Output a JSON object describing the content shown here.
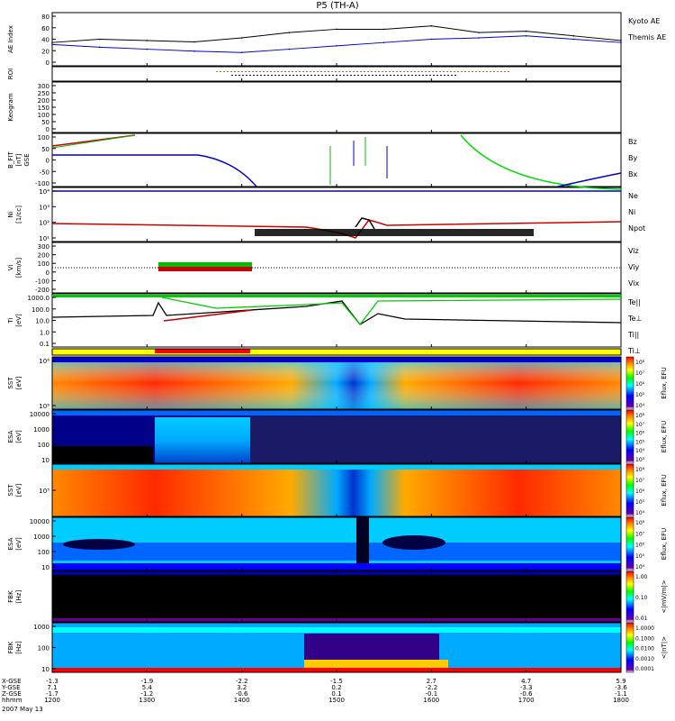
{
  "title": "P5 (TH-A)",
  "panels": [
    {
      "ylabel": "AE Index",
      "ticks": [
        "80",
        "60",
        "40",
        "20",
        "0"
      ],
      "legend": [
        {
          "text": "Kyoto AE",
          "color": "#0000cc"
        },
        {
          "text": "Themis AE",
          "color": "#000000"
        }
      ]
    },
    {
      "ylabel": "ROI",
      "ticks": [],
      "legend": []
    },
    {
      "ylabel": "Keogram",
      "ticks": [
        "300",
        "250",
        "200",
        "150",
        "100",
        "50",
        "0"
      ],
      "legend": []
    },
    {
      "ylabel": "B_FIT\n[nT]\nGSE",
      "ticks": [
        "100",
        "50",
        "0",
        "-50",
        "-100"
      ],
      "legend": [
        {
          "text": "Bz",
          "color": "#cc0000"
        },
        {
          "text": "By",
          "color": "#00bb00"
        },
        {
          "text": "Bx",
          "color": "#0000cc"
        }
      ]
    },
    {
      "ylabel": "Ni\n[1/cc]",
      "ticks": [
        "10⁴",
        "10³",
        "10²",
        "10¹"
      ],
      "legend": [
        {
          "text": "Ne",
          "color": "#cc0000"
        },
        {
          "text": "Ni",
          "color": "#000000"
        },
        {
          "text": "Npot",
          "color": "#0000cc"
        }
      ]
    },
    {
      "ylabel": "Vi\n[km/s]",
      "ticks": [
        "300",
        "200",
        "100",
        "0",
        "-100",
        "-200"
      ],
      "legend": [
        {
          "text": "Viz",
          "color": "#cc0000"
        },
        {
          "text": "Viy",
          "color": "#00bb00"
        },
        {
          "text": "Vix",
          "color": "#0000cc"
        }
      ]
    },
    {
      "ylabel": "Ti\n[eV]",
      "ticks": [
        "1000.0",
        "100.0",
        "10.0",
        "1.0",
        "0.1"
      ],
      "legend": [
        {
          "text": "Te||",
          "color": "#000000"
        },
        {
          "text": "Te⊥",
          "color": "#cc0000"
        },
        {
          "text": "Ti||",
          "color": "#00bb00"
        },
        {
          "text": "Ti⊥",
          "color": "#0000cc"
        }
      ]
    },
    {
      "ylabel": "SST\n[eV]",
      "ticks": [
        "10⁶",
        "10⁵"
      ],
      "legend": []
    },
    {
      "ylabel": "ESA\n[eV]",
      "ticks": [
        "10000",
        "1000",
        "100",
        "10"
      ],
      "legend": []
    },
    {
      "ylabel": "SST\n[eV]",
      "ticks": [
        "10⁵"
      ],
      "legend": []
    },
    {
      "ylabel": "ESA\n[eV]",
      "ticks": [
        "10000",
        "1000",
        "100",
        "10"
      ],
      "legend": []
    },
    {
      "ylabel": "FBK\n[Hz]",
      "ticks": [],
      "legend": []
    },
    {
      "ylabel": "FBK\n[Hz]",
      "ticks": [
        "1000",
        "100",
        "10"
      ],
      "legend": []
    }
  ],
  "colorbars": [
    {
      "label": "Eflux, EFU",
      "ticks": [
        "10⁸",
        "10⁷",
        "10⁶",
        "10⁵",
        "10⁴"
      ]
    },
    {
      "label": "Eflux, EFU",
      "ticks": [
        "10⁸",
        "10⁷",
        "10⁶",
        "10⁵",
        "10⁴",
        "10³"
      ]
    },
    {
      "label": "Eflux, EFU",
      "ticks": [
        "10⁸",
        "10⁷",
        "10⁶",
        "10⁵",
        "10⁴"
      ]
    },
    {
      "label": "Eflux, EFU",
      "ticks": [
        "10⁸",
        "10⁷",
        "10⁶",
        "10⁵",
        "10⁴"
      ]
    },
    {
      "label": "<|mV/m|>",
      "ticks": [
        "1.00",
        "0.10",
        "0.01"
      ]
    },
    {
      "label": "<|nT|>",
      "ticks": [
        "1.0000",
        "0.1000",
        "0.0100",
        "0.0010",
        "0.0001"
      ]
    }
  ],
  "xaxis": {
    "rows": [
      {
        "label": "X-GSE",
        "values": [
          "-1.3",
          "-1.9",
          "-2.2",
          "-1.5",
          "2.7",
          "4.7",
          "5.9"
        ]
      },
      {
        "label": "Y-GSE",
        "values": [
          "7.1",
          "5.4",
          "3.2",
          "0.2",
          "-2.2",
          "-3.3",
          "-3.6"
        ]
      },
      {
        "label": "Z-GSE",
        "values": [
          "-1.7",
          "-1.2",
          "-0.6",
          "0.1",
          "-0.1",
          "-0.6",
          "-1.1"
        ]
      },
      {
        "label": "hhmm",
        "values": [
          "1200",
          "1300",
          "1400",
          "1500",
          "1600",
          "1700",
          "1800"
        ]
      }
    ],
    "date": "2007 May 13"
  },
  "chart_data": {
    "type": "line",
    "title": "P5 (TH-A)",
    "x_unit": "hhmm",
    "xlim": [
      "1200",
      "1800"
    ],
    "series": [
      {
        "name": "Kyoto AE",
        "x": [
          "1200",
          "1230",
          "1300",
          "1330",
          "1400",
          "1430",
          "1500",
          "1530",
          "1600",
          "1630",
          "1700",
          "1730",
          "1800"
        ],
        "values": [
          32,
          28,
          25,
          22,
          20,
          25,
          30,
          35,
          40,
          42,
          45,
          40,
          35
        ]
      },
      {
        "name": "Themis AE",
        "x": [
          "1200",
          "1230",
          "1300",
          "1330",
          "1400",
          "1430",
          "1500",
          "1530",
          "1600",
          "1630",
          "1700",
          "1730",
          "1800"
        ],
        "values": [
          35,
          40,
          38,
          36,
          42,
          50,
          55,
          55,
          60,
          50,
          52,
          45,
          38
        ]
      }
    ],
    "ylabel": "AE Index",
    "ylim": [
      0,
      80
    ],
    "grid": false,
    "legend": "right"
  }
}
